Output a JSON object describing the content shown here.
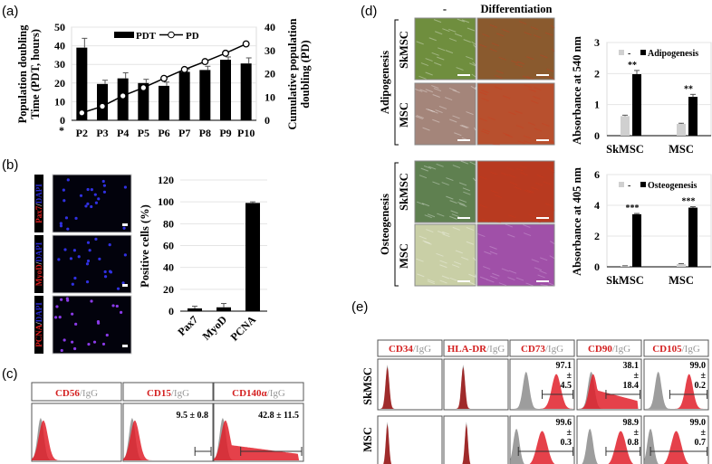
{
  "panels": {
    "a": "(a)",
    "b": "(b)",
    "c": "(c)",
    "d": "(d)",
    "e": "(e)"
  },
  "colors": {
    "bar": "#000000",
    "control_bar": "#d0d0d0",
    "marker": "#e0202a",
    "isotype": "#8c8c8c",
    "grid": "#e4e4e4"
  },
  "chart_data": [
    {
      "id": "a",
      "type": "bar+line",
      "categories": [
        "P2",
        "P3",
        "P4",
        "P5",
        "P6",
        "P7",
        "P8",
        "P9",
        "P10"
      ],
      "series": [
        {
          "name": "PDT",
          "type": "bar",
          "axis": "left",
          "values": [
            39,
            19.5,
            22.5,
            20,
            18.5,
            26,
            27,
            32.5,
            30.5
          ],
          "errors": [
            5,
            2,
            3,
            2,
            2,
            1.5,
            2,
            1.5,
            3
          ]
        },
        {
          "name": "PD",
          "type": "line",
          "axis": "right",
          "values": [
            3.2,
            6,
            10.5,
            14,
            18,
            21.8,
            25.2,
            28.8,
            32.8
          ]
        }
      ],
      "ylabel": "Population doubling Time (PDT, hours)",
      "y2label": "Cumulative population doubling (PD)",
      "ylim": [
        0,
        50
      ],
      "yticks": [
        "0",
        "10",
        "20",
        "30",
        "40",
        "50"
      ],
      "y2lim": [
        0,
        40
      ],
      "y2ticks": [
        "0",
        "10",
        "20",
        "30",
        "40"
      ],
      "annotation": "*",
      "legend": "top",
      "grid": true
    },
    {
      "id": "b",
      "type": "bar",
      "categories": [
        "Pax7",
        "MyoD",
        "PCNA"
      ],
      "values": [
        2.5,
        3.5,
        99
      ],
      "errors": [
        2,
        3.5,
        1
      ],
      "ylabel": "Positive cells (%)",
      "ylim": [
        0,
        120
      ],
      "yticks": [
        "0",
        "20",
        "40",
        "60",
        "80",
        "100",
        "120"
      ],
      "grid": true
    },
    {
      "id": "d-adipo",
      "type": "bar",
      "categories": [
        "SkMSC",
        "MSC"
      ],
      "series": [
        {
          "name": "-",
          "values": [
            0.63,
            0.38
          ],
          "errors": [
            0.03,
            0.02
          ]
        },
        {
          "name": "Adipogenesis",
          "values": [
            1.98,
            1.25
          ],
          "errors": [
            0.12,
            0.08
          ]
        }
      ],
      "significance": [
        "**",
        "**"
      ],
      "ylabel": "Absorbance at 540 nm",
      "ylim": [
        0,
        3
      ],
      "yticks": [
        "0",
        "1",
        "2",
        "3"
      ],
      "legend": "top",
      "grid": true
    },
    {
      "id": "d-osteo",
      "type": "bar",
      "categories": [
        "SkMSC",
        "MSC"
      ],
      "series": [
        {
          "name": "-",
          "values": [
            0.05,
            0.18
          ],
          "errors": [
            0.02,
            0.03
          ]
        },
        {
          "name": "Osteogenesis",
          "values": [
            3.42,
            3.85
          ],
          "errors": [
            0.05,
            0.06
          ]
        }
      ],
      "significance": [
        "***",
        "***"
      ],
      "ylabel": "Absorbance at 405 nm",
      "ylim": [
        0,
        6
      ],
      "yticks": [
        "0",
        "2",
        "4",
        "6"
      ],
      "legend": "top",
      "grid": true
    }
  ],
  "b_images": {
    "rows": [
      {
        "marker": "Pax7",
        "sep": "/",
        "dapi": "DAPI"
      },
      {
        "marker": "MyoD",
        "sep": "/",
        "dapi": "DAPI"
      },
      {
        "marker": "PCNA",
        "sep": "/",
        "dapi": "DAPI"
      }
    ]
  },
  "c_flow": {
    "isotype": "/IgG",
    "columns": [
      {
        "marker": "CD56",
        "stat": ""
      },
      {
        "marker": "CD15",
        "stat": "9.5 ± 0.8"
      },
      {
        "marker": "CD140α",
        "stat": "42.8 ± 11.5"
      }
    ]
  },
  "d_images": {
    "col_headers": [
      "-",
      "Differentiation"
    ],
    "groups": [
      {
        "label": "Adipogenesis",
        "rows": [
          "SkMSC",
          "MSC"
        ]
      },
      {
        "label": "Osteogenesis",
        "rows": [
          "SkMSC",
          "MSC"
        ]
      }
    ]
  },
  "e_flow": {
    "isotype": "/IgG",
    "rows": [
      "SkMSC",
      "MSC"
    ],
    "columns": [
      {
        "marker": "CD34",
        "stats": [
          [
            "",
            "",
            ""
          ],
          [
            "",
            "",
            ""
          ]
        ]
      },
      {
        "marker": "HLA-DR",
        "stats": [
          [
            "",
            "",
            ""
          ],
          [
            "",
            "",
            ""
          ]
        ]
      },
      {
        "marker": "CD73",
        "stats": [
          [
            "97.1",
            "±",
            "4.5"
          ],
          [
            "99.6",
            "±",
            "0.3"
          ]
        ]
      },
      {
        "marker": "CD90",
        "stats": [
          [
            "38.1",
            "±",
            "18.4"
          ],
          [
            "98.9",
            "±",
            "0.8"
          ]
        ]
      },
      {
        "marker": "CD105",
        "stats": [
          [
            "99.0",
            "±",
            "0.2"
          ],
          [
            "99.0",
            "±",
            "0.7"
          ]
        ]
      }
    ]
  }
}
